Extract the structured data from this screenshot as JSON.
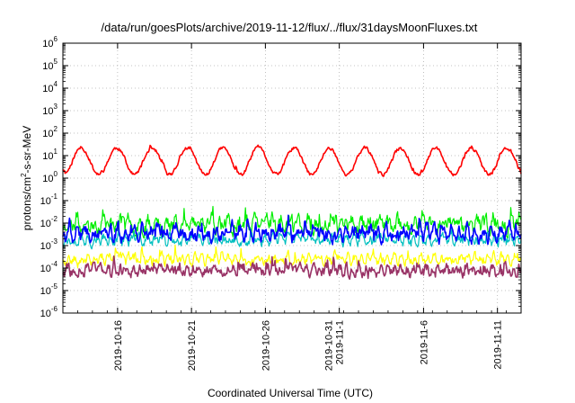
{
  "chart_data": {
    "type": "line",
    "title": "/data/run/goesPlots/archive/2019-11-12/flux/../flux/31daysMoonFluxes.txt",
    "xlabel": "Coordinated Universal Time (UTC)",
    "ylabel": {
      "base": "protons/cm",
      "exp": "2",
      "rest": "-s-sr-MeV"
    },
    "yscale": "log",
    "ylim_exp": [
      -6,
      6
    ],
    "y_ticks": [
      {
        "base": "10",
        "exp": "-6",
        "value": -6
      },
      {
        "base": "10",
        "exp": "-5",
        "value": -5
      },
      {
        "base": "10",
        "exp": "-4",
        "value": -4
      },
      {
        "base": "10",
        "exp": "-3",
        "value": -3
      },
      {
        "base": "10",
        "exp": "-2",
        "value": -2
      },
      {
        "base": "10",
        "exp": "-1",
        "value": -1
      },
      {
        "base": "10",
        "exp": "0",
        "value": 0
      },
      {
        "base": "10",
        "exp": "1",
        "value": 1
      },
      {
        "base": "10",
        "exp": "2",
        "value": 2
      },
      {
        "base": "10",
        "exp": "3",
        "value": 3
      },
      {
        "base": "10",
        "exp": "4",
        "value": 4
      },
      {
        "base": "10",
        "exp": "5",
        "value": 5
      },
      {
        "base": "10",
        "exp": "6",
        "value": 6
      }
    ],
    "xlim_days": [
      0,
      31
    ],
    "x_ticks": [
      {
        "lines": [
          "2019-10-16"
        ],
        "day": 3.7
      },
      {
        "lines": [
          "2019-10-21"
        ],
        "day": 8.7
      },
      {
        "lines": [
          "2019-10-26"
        ],
        "day": 13.7
      },
      {
        "lines": [
          "2019-10-31",
          "2019-11-1"
        ],
        "day": 18.7
      },
      {
        "lines": [
          "2019-11-6"
        ],
        "day": 24.4
      },
      {
        "lines": [
          "2019-11-11"
        ],
        "day": 29.4
      }
    ],
    "grid": true,
    "series": [
      {
        "color": "#ff0000",
        "width": 1.6,
        "center": 0.75,
        "amp": 0.6,
        "noise": 0.12,
        "period": 2.4,
        "jag": 0.15,
        "seed": 11
      },
      {
        "color": "#00ee00",
        "width": 1.2,
        "center": -2.05,
        "amp": 0.2,
        "noise": 0.55,
        "period": 0.6,
        "jag": 0.55,
        "seed": 23
      },
      {
        "color": "#00bfbf",
        "width": 1.2,
        "center": -2.75,
        "amp": 0.15,
        "noise": 0.35,
        "period": 0.5,
        "jag": 0.45,
        "seed": 37
      },
      {
        "color": "#0000ff",
        "width": 1.6,
        "center": -2.45,
        "amp": 0.25,
        "noise": 0.45,
        "period": 0.55,
        "jag": 0.5,
        "seed": 41
      },
      {
        "color": "#ffff00",
        "width": 1.2,
        "center": -3.6,
        "amp": 0.15,
        "noise": 0.35,
        "period": 0.45,
        "jag": 0.45,
        "seed": 53
      },
      {
        "color": "#993366",
        "width": 1.6,
        "center": -4.1,
        "amp": 0.15,
        "noise": 0.35,
        "period": 0.45,
        "jag": 0.45,
        "seed": 67
      }
    ]
  }
}
